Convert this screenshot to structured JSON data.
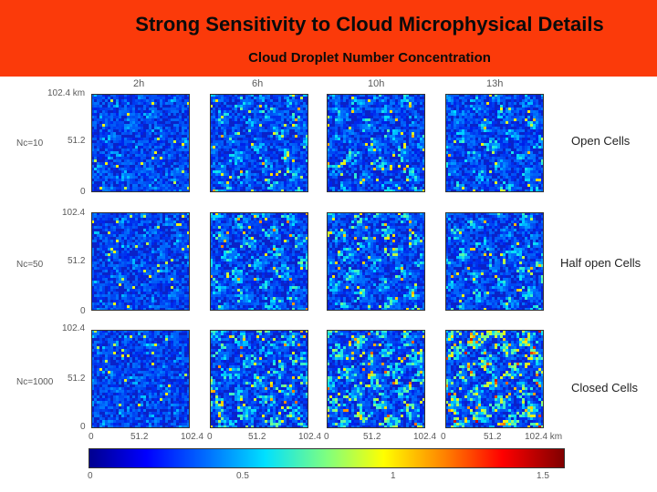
{
  "header": {
    "title": "Strong Sensitivity to Cloud Microphysical Details",
    "subtitle": "Cloud Droplet Number Concentration"
  },
  "figure": {
    "columns": [
      "2h",
      "6h",
      "10h",
      "13h"
    ],
    "rows": [
      "Nc=10",
      "Nc=50",
      "Nc=1000"
    ],
    "y_ticks_row1": [
      "102.4 km",
      "51.2",
      "0"
    ],
    "y_ticks": [
      "102.4",
      "51.2",
      "0"
    ],
    "x_ticks": [
      "0",
      "51.2",
      "102.4",
      "0",
      "51.2",
      "102.4",
      "0",
      "51.2",
      "102.4",
      "0",
      "51.2",
      "102.4 km"
    ],
    "cell_labels": [
      "Open Cells",
      "Half open Cells",
      "Closed Cells"
    ],
    "colorbar_ticks": [
      "0",
      "0.5",
      "1",
      "1.5"
    ]
  },
  "colors": {
    "header_bg": "#fb3a0a",
    "field_base": "#0a22c8"
  }
}
